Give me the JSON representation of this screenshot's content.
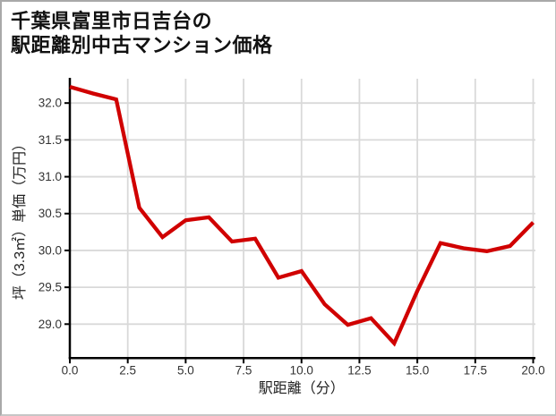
{
  "title": {
    "line1": "千葉県富里市日吉台の",
    "line2": "駅距離別中古マンション価格"
  },
  "chart_data": {
    "type": "line",
    "title": "千葉県富里市日吉台の駅距離別中古マンション価格",
    "xlabel": "駅距離（分）",
    "ylabel": "坪（3.3㎡）単価（万円）",
    "x": [
      0,
      1,
      2,
      3,
      4,
      5,
      6,
      7,
      8,
      9,
      10,
      11,
      12,
      13,
      14,
      15,
      16,
      17,
      18,
      19,
      20
    ],
    "y": [
      32.22,
      32.13,
      32.05,
      30.58,
      30.18,
      30.41,
      30.45,
      30.12,
      30.16,
      29.63,
      29.72,
      29.27,
      28.99,
      29.08,
      28.74,
      29.45,
      30.1,
      30.03,
      29.99,
      30.06,
      30.38
    ],
    "xlim": [
      0,
      20
    ],
    "ylim": [
      28.54,
      32.33
    ],
    "xticks": [
      0,
      2.5,
      5,
      7.5,
      10,
      12.5,
      15,
      17.5,
      20
    ],
    "xtick_labels": [
      "0.0",
      "2.5",
      "5.0",
      "7.5",
      "10.0",
      "12.5",
      "15.0",
      "17.5",
      "20.0"
    ],
    "yticks": [
      29.0,
      29.5,
      30.0,
      30.5,
      31.0,
      31.5,
      32.0
    ],
    "ytick_labels": [
      "29.0",
      "29.5",
      "30.0",
      "30.5",
      "31.0",
      "31.5",
      "32.0"
    ],
    "grid": true,
    "legend": "none"
  },
  "colors": {
    "line": "#d00000",
    "grid": "#d9d9d9",
    "axis": "#000000",
    "tick_text": "#333333",
    "label_text": "#222222",
    "background": "#ffffff"
  }
}
